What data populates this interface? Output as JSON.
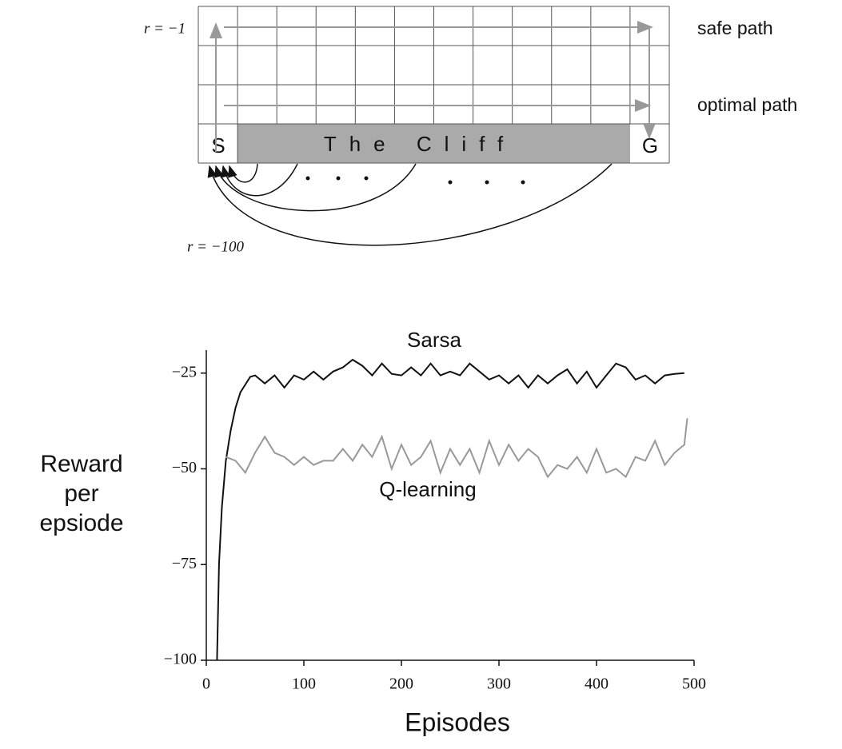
{
  "diagram": {
    "reward_step": "r = −1",
    "safe_path": "safe path",
    "optimal_path": "optimal path",
    "start": "S",
    "goal": "G",
    "cliff": "The Cliff",
    "reward_cliff": "r = −100"
  },
  "chart_data": {
    "type": "line",
    "ylabel": [
      "Reward",
      "per",
      "epsiode"
    ],
    "xlabel": "Episodes",
    "xlim": [
      0,
      500
    ],
    "ylim": [
      -100,
      -19
    ],
    "xticks": [
      0,
      100,
      200,
      300,
      400,
      500
    ],
    "yticks": [
      {
        "value": -100,
        "label": "−100"
      },
      {
        "value": -75,
        "label": "−75"
      },
      {
        "value": -50,
        "label": "−50"
      },
      {
        "value": -25,
        "label": "−25"
      }
    ],
    "series": [
      {
        "name": "Sarsa",
        "color": "#111111",
        "x": [
          11,
          13,
          16,
          20,
          25,
          30,
          35,
          40,
          45,
          50,
          60,
          70,
          80,
          90,
          100,
          110,
          120,
          130,
          140,
          150,
          160,
          170,
          180,
          190,
          200,
          210,
          220,
          230,
          240,
          250,
          260,
          270,
          280,
          290,
          300,
          310,
          320,
          330,
          340,
          350,
          360,
          370,
          380,
          390,
          400,
          410,
          420,
          430,
          440,
          450,
          460,
          470,
          480,
          490
        ],
        "values": [
          -100,
          -75,
          -60,
          -48,
          -40,
          -34,
          -30,
          -28,
          -26,
          -25.6,
          -27.7,
          -25.6,
          -28.8,
          -25.6,
          -26.7,
          -24.6,
          -26.7,
          -24.6,
          -23.5,
          -21.5,
          -23.1,
          -25.6,
          -22.5,
          -25.2,
          -25.6,
          -23.5,
          -25.6,
          -22.5,
          -25.6,
          -24.6,
          -25.6,
          -22.5,
          -24.6,
          -26.7,
          -25.6,
          -27.7,
          -25.6,
          -28.8,
          -25.6,
          -27.7,
          -25.6,
          -24,
          -27.7,
          -24.6,
          -28.8,
          -25.6,
          -22.5,
          -23.5,
          -26.7,
          -25.6,
          -27.7,
          -25.6,
          -25.2,
          -25
        ]
      },
      {
        "name": "Q-learning",
        "color": "#999999",
        "x": [
          20,
          30,
          40,
          50,
          60,
          70,
          80,
          90,
          100,
          110,
          120,
          130,
          140,
          150,
          160,
          170,
          180,
          190,
          200,
          210,
          220,
          230,
          240,
          250,
          260,
          270,
          280,
          290,
          300,
          310,
          320,
          330,
          340,
          350,
          360,
          370,
          380,
          390,
          400,
          410,
          420,
          430,
          440,
          450,
          460,
          470,
          480,
          490,
          493
        ],
        "values": [
          -46.9,
          -47.9,
          -51,
          -45.8,
          -41.6,
          -45.8,
          -46.9,
          -49,
          -46.9,
          -49,
          -47.9,
          -47.9,
          -44.8,
          -47.9,
          -43.7,
          -46.9,
          -41.6,
          -50,
          -43.7,
          -49,
          -46.9,
          -42.7,
          -51,
          -44.8,
          -49,
          -44.8,
          -51,
          -42.7,
          -49,
          -43.7,
          -47.9,
          -44.8,
          -46.9,
          -52.1,
          -49,
          -50,
          -46.9,
          -51,
          -44.8,
          -51,
          -50,
          -52.1,
          -46.9,
          -47.9,
          -42.7,
          -49,
          -45.8,
          -43.7,
          -36.8
        ]
      }
    ]
  }
}
